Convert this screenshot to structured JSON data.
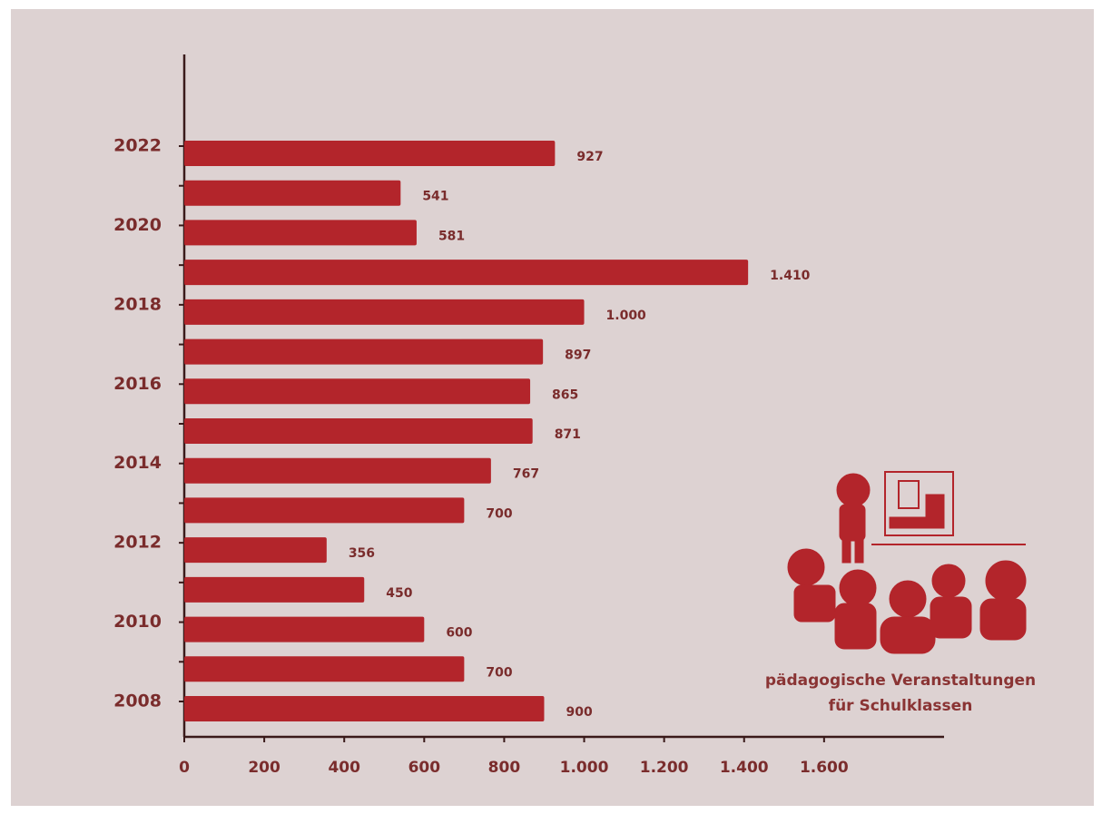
{
  "chart_data": {
    "type": "hbar",
    "categories": [
      "2008",
      null,
      "2010",
      null,
      "2012",
      null,
      "2014",
      null,
      "2016",
      null,
      "2018",
      null,
      "2020",
      null,
      "2022"
    ],
    "values": [
      900,
      700,
      600,
      450,
      356,
      700,
      767,
      871,
      865,
      897,
      1000,
      1410,
      581,
      541,
      927
    ],
    "value_labels": [
      "900",
      "700",
      "600",
      "450",
      "356",
      "700",
      "767",
      "871",
      "865",
      "897",
      "1.000",
      "1.410",
      "581",
      "541",
      "927"
    ],
    "color": "#b3252b",
    "xlim": [
      0,
      1900
    ],
    "xticks": [
      0,
      200,
      400,
      600,
      800,
      {
        "value": 1000,
        "label": "1.000"
      },
      {
        "value": 1200,
        "label": "1.200"
      },
      {
        "value": 1400,
        "label": "1.400"
      },
      {
        "value": 1600,
        "label": "1.600"
      }
    ],
    "annotation": [
      "pädagogische Veranstaltungen",
      "für Schulklassen"
    ]
  }
}
